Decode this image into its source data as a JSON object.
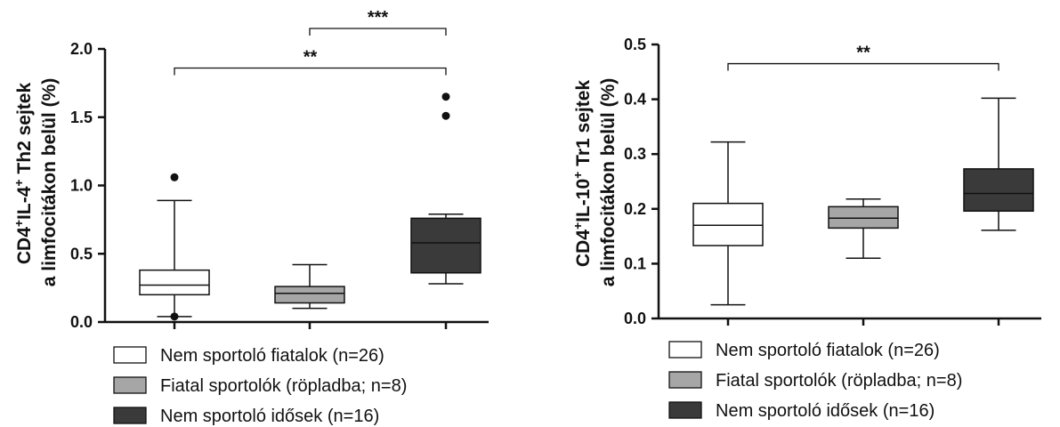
{
  "chart_data": [
    {
      "type": "box",
      "ylabel_line1_main": "CD4",
      "ylabel_line1_sup1": "+",
      "ylabel_line1_mid": "IL-4",
      "ylabel_line1_sup2": "+",
      "ylabel_line1_end": " Th2 sejtek",
      "ylabel_line2": "a limfocitákon belül (%)",
      "ylim": [
        0,
        2.0
      ],
      "yticks": [
        "0.0",
        "0.5",
        "1.0",
        "1.5",
        "2.0"
      ],
      "ytick_values": [
        0,
        0.5,
        1.0,
        1.5,
        2.0
      ],
      "series": [
        {
          "name": "Nem sportoló fiatalok (n=26)",
          "color": "#ffffff",
          "min": 0.04,
          "q1": 0.2,
          "median": 0.27,
          "q3": 0.38,
          "max": 0.89,
          "outliers": [
            0.04,
            1.06
          ]
        },
        {
          "name": "Fiatal sportolók (röpladba; n=8)",
          "color": "#a6a6a6",
          "min": 0.1,
          "q1": 0.14,
          "median": 0.21,
          "q3": 0.26,
          "max": 0.42,
          "outliers": []
        },
        {
          "name": "Nem sportoló idősek (n=16)",
          "color": "#3a3a3a",
          "min": 0.28,
          "q1": 0.36,
          "median": 0.58,
          "q3": 0.76,
          "max": 0.79,
          "outliers": [
            1.51,
            1.65
          ]
        }
      ],
      "significance": [
        {
          "from": 1,
          "to": 2,
          "label": "***",
          "level": 2.15
        },
        {
          "from": 0,
          "to": 2,
          "label": "**",
          "level": 1.86
        }
      ]
    },
    {
      "type": "box",
      "ylabel_line1_main": "CD4",
      "ylabel_line1_sup1": "+",
      "ylabel_line1_mid": "IL-10",
      "ylabel_line1_sup2": "+",
      "ylabel_line1_end": " Tr1 sejtek",
      "ylabel_line2": "a limfocitákon belül (%)",
      "ylim": [
        0,
        0.5
      ],
      "yticks": [
        "0.0",
        "0.1",
        "0.2",
        "0.3",
        "0.4",
        "0.5"
      ],
      "ytick_values": [
        0,
        0.1,
        0.2,
        0.3,
        0.4,
        0.5
      ],
      "series": [
        {
          "name": "Nem sportoló fiatalok (n=26)",
          "color": "#ffffff",
          "min": 0.025,
          "q1": 0.133,
          "median": 0.17,
          "q3": 0.21,
          "max": 0.322,
          "outliers": []
        },
        {
          "name": "Fiatal sportolók (röpladba; n=8)",
          "color": "#a6a6a6",
          "min": 0.11,
          "q1": 0.165,
          "median": 0.183,
          "q3": 0.204,
          "max": 0.218,
          "outliers": []
        },
        {
          "name": "Nem sportoló idősek (n=16)",
          "color": "#3a3a3a",
          "min": 0.161,
          "q1": 0.196,
          "median": 0.228,
          "q3": 0.273,
          "max": 0.402,
          "outliers": []
        }
      ],
      "significance": [
        {
          "from": 0,
          "to": 2,
          "label": "**",
          "level": 0.465
        }
      ]
    }
  ],
  "legend": [
    {
      "label": "Nem sportoló fiatalok (n=26)",
      "color": "#ffffff"
    },
    {
      "label": "Fiatal sportolók (röpladba; n=8)",
      "color": "#a6a6a6"
    },
    {
      "label": "Nem sportoló idősek (n=16)",
      "color": "#3a3a3a"
    }
  ]
}
